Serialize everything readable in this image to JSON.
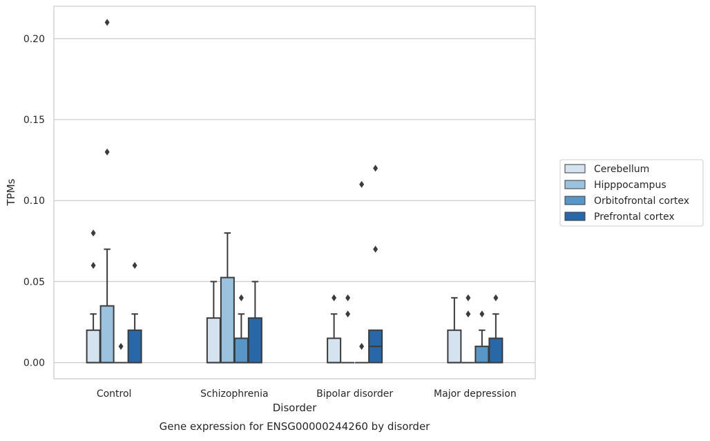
{
  "chart_data": {
    "type": "box",
    "caption": "Gene expression for ENSG00000244260 by disorder",
    "xlabel": "Disorder",
    "ylabel": "TPMs",
    "ylim": [
      -0.01,
      0.22
    ],
    "yticks": [
      0.0,
      0.05,
      0.1,
      0.15,
      0.2
    ],
    "ytick_labels": [
      "0.00",
      "0.05",
      "0.10",
      "0.15",
      "0.20"
    ],
    "grid": "horizontal",
    "legend_position": "right",
    "categories": [
      "Control",
      "Schizophrenia",
      "Bipolar disorder",
      "Major depression"
    ],
    "series": [
      {
        "name": "Cerebellum",
        "color": "#d5e3f1",
        "boxes": [
          {
            "q1": 0.0,
            "median": 0.0,
            "q3": 0.02,
            "whisker_low": 0.0,
            "whisker_high": 0.03,
            "outliers": [
              0.06,
              0.08
            ]
          },
          {
            "q1": 0.0,
            "median": 0.0,
            "q3": 0.0275,
            "whisker_low": 0.0,
            "whisker_high": 0.05,
            "outliers": []
          },
          {
            "q1": 0.0,
            "median": 0.0,
            "q3": 0.015,
            "whisker_low": 0.0,
            "whisker_high": 0.03,
            "outliers": [
              0.04
            ]
          },
          {
            "q1": 0.0,
            "median": 0.0,
            "q3": 0.02,
            "whisker_low": 0.0,
            "whisker_high": 0.04,
            "outliers": []
          }
        ]
      },
      {
        "name": "Hipppocampus",
        "color": "#9bc2de",
        "boxes": [
          {
            "q1": 0.0,
            "median": 0.0,
            "q3": 0.035,
            "whisker_low": 0.0,
            "whisker_high": 0.07,
            "outliers": [
              0.13,
              0.21
            ]
          },
          {
            "q1": 0.0,
            "median": 0.0,
            "q3": 0.0525,
            "whisker_low": 0.0,
            "whisker_high": 0.08,
            "outliers": []
          },
          {
            "q1": 0.0,
            "median": 0.0,
            "q3": 0.0,
            "whisker_low": 0.0,
            "whisker_high": 0.0,
            "outliers": [
              0.03,
              0.04
            ]
          },
          {
            "q1": 0.0,
            "median": 0.0,
            "q3": 0.0,
            "whisker_low": 0.0,
            "whisker_high": 0.0,
            "outliers": [
              0.03,
              0.04
            ]
          }
        ]
      },
      {
        "name": "Orbitofrontal cortex",
        "color": "#5796c6",
        "boxes": [
          {
            "q1": 0.0,
            "median": 0.0,
            "q3": 0.0,
            "whisker_low": 0.0,
            "whisker_high": 0.0,
            "outliers": [
              0.01
            ]
          },
          {
            "q1": 0.0,
            "median": 0.0,
            "q3": 0.015,
            "whisker_low": 0.0,
            "whisker_high": 0.03,
            "outliers": [
              0.04
            ]
          },
          {
            "q1": 0.0,
            "median": 0.0,
            "q3": 0.0,
            "whisker_low": 0.0,
            "whisker_high": 0.0,
            "outliers": [
              0.01,
              0.11
            ]
          },
          {
            "q1": 0.0,
            "median": 0.0,
            "q3": 0.01,
            "whisker_low": 0.0,
            "whisker_high": 0.02,
            "outliers": [
              0.03
            ]
          }
        ]
      },
      {
        "name": "Prefrontal cortex",
        "color": "#2867a8",
        "boxes": [
          {
            "q1": 0.0,
            "median": 0.0,
            "q3": 0.02,
            "whisker_low": 0.0,
            "whisker_high": 0.03,
            "outliers": [
              0.06
            ]
          },
          {
            "q1": 0.0,
            "median": 0.0,
            "q3": 0.0275,
            "whisker_low": 0.0,
            "whisker_high": 0.05,
            "outliers": []
          },
          {
            "q1": 0.0,
            "median": 0.01,
            "q3": 0.02,
            "whisker_low": 0.0,
            "whisker_high": 0.02,
            "outliers": [
              0.07,
              0.12
            ]
          },
          {
            "q1": 0.0,
            "median": 0.0,
            "q3": 0.015,
            "whisker_low": 0.0,
            "whisker_high": 0.03,
            "outliers": [
              0.04
            ]
          }
        ]
      }
    ]
  }
}
